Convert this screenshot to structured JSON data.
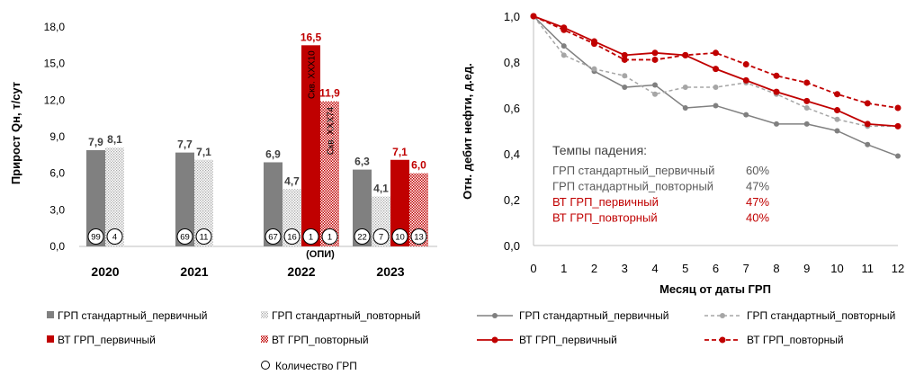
{
  "colors": {
    "std_primary": "#808080",
    "std_repeat": "#a6a6a6",
    "vt_primary": "#c00000",
    "axis": "#bfbfbf",
    "text": "#000000"
  },
  "chart_data": [
    {
      "type": "bar",
      "ylabel": "Прирост Qн, т/сут",
      "xlabel": "",
      "ylim": [
        0,
        18
      ],
      "yticks": [
        "0,0",
        "3,0",
        "6,0",
        "9,0",
        "12,0",
        "15,0",
        "18,0"
      ],
      "grid": false,
      "legend_position": "bottom",
      "categories": [
        "2020",
        "2021",
        "2022",
        "2023"
      ],
      "category_note": {
        "category": "2022",
        "text": "(ОПИ)"
      },
      "series": [
        {
          "name": "ГРП стандартный_первичный",
          "values": [
            7.9,
            7.7,
            6.9,
            6.3
          ],
          "labels": [
            "7,9",
            "7,7",
            "6,9",
            "6,3"
          ],
          "counts": [
            "99",
            "69",
            "67",
            "22"
          ]
        },
        {
          "name": "ГРП стандартный_повторный",
          "values": [
            8.1,
            7.1,
            4.7,
            4.1
          ],
          "labels": [
            "8,1",
            "7,1",
            "4,7",
            "4,1"
          ],
          "counts": [
            "4",
            "11",
            "16",
            "7"
          ]
        },
        {
          "name": "ВТ ГРП_первичный",
          "values": [
            null,
            null,
            16.5,
            7.1
          ],
          "labels": [
            "",
            "",
            "16,5",
            "7,1"
          ],
          "counts": [
            "",
            "",
            "1",
            "10"
          ]
        },
        {
          "name": "ВТ ГРП_повторный",
          "values": [
            null,
            null,
            11.9,
            6.0
          ],
          "labels": [
            "",
            "",
            "11,9",
            "6,0"
          ],
          "counts": [
            "",
            "",
            "1",
            "13"
          ]
        }
      ],
      "annotations": [
        {
          "series": 2,
          "category": "2022",
          "text": "Скв. XXX10"
        },
        {
          "series": 3,
          "category": "2022",
          "text": "Скв. XXX74"
        }
      ],
      "count_legend": "Количество ГРП"
    },
    {
      "type": "line",
      "xlabel": "Месяц от даты ГРП",
      "ylabel": "Отн. дебит нефти, д.ед.",
      "xlim": [
        0,
        12
      ],
      "ylim": [
        0,
        1
      ],
      "x": [
        0,
        1,
        2,
        3,
        4,
        5,
        6,
        7,
        8,
        9,
        10,
        11,
        12
      ],
      "xticks": [
        "0",
        "1",
        "2",
        "3",
        "4",
        "5",
        "6",
        "7",
        "8",
        "9",
        "10",
        "11",
        "12"
      ],
      "yticks": [
        "0,0",
        "0,2",
        "0,4",
        "0,6",
        "0,8",
        "1,0"
      ],
      "grid": false,
      "legend_position": "bottom",
      "series": [
        {
          "name": "ГРП стандартный_первичный",
          "values": [
            1.0,
            0.87,
            0.76,
            0.69,
            0.7,
            0.6,
            0.61,
            0.57,
            0.53,
            0.53,
            0.5,
            0.44,
            0.39
          ]
        },
        {
          "name": "ГРП стандартный_повторный",
          "values": [
            1.0,
            0.83,
            0.77,
            0.74,
            0.66,
            0.69,
            0.69,
            0.71,
            0.66,
            0.6,
            0.55,
            0.52,
            0.52
          ]
        },
        {
          "name": "ВТ ГРП_первичный",
          "values": [
            1.0,
            0.95,
            0.89,
            0.83,
            0.84,
            0.83,
            0.77,
            0.72,
            0.67,
            0.63,
            0.59,
            0.53,
            0.52
          ]
        },
        {
          "name": "ВТ ГРП_повторный",
          "values": [
            1.0,
            0.94,
            0.88,
            0.81,
            0.81,
            0.83,
            0.84,
            0.79,
            0.74,
            0.71,
            0.66,
            0.62,
            0.6
          ]
        }
      ],
      "rates_box": {
        "title": "Темпы падения:",
        "rows": [
          {
            "label": "ГРП стандартный_первичный",
            "value": "60%"
          },
          {
            "label": "ГРП стандартный_повторный",
            "value": "47%"
          },
          {
            "label": "ВТ ГРП_первичный",
            "value": "47%"
          },
          {
            "label": "ВТ ГРП_повторный",
            "value": "40%"
          }
        ]
      }
    }
  ]
}
